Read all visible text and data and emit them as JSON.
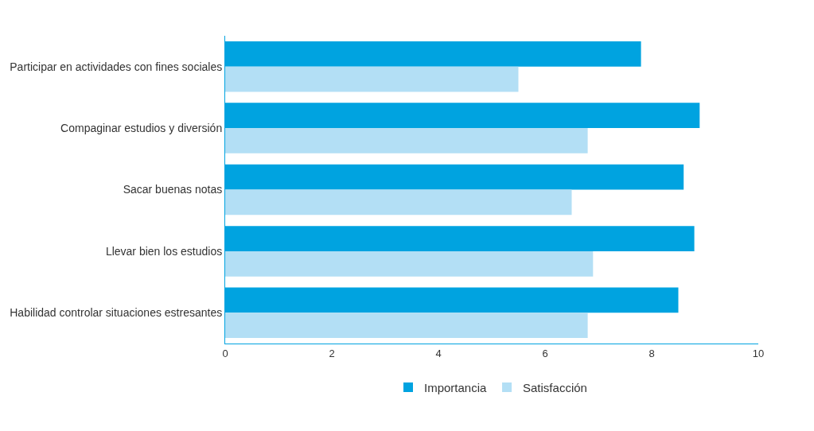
{
  "chart_data": {
    "type": "bar",
    "orientation": "horizontal",
    "categories": [
      "Participar en actividades con fines sociales",
      "Compaginar estudios y diversión",
      "Sacar buenas notas",
      "Llevar bien los estudios",
      "Habilidad controlar situaciones estresantes"
    ],
    "series": [
      {
        "name": "Importancia",
        "color": "#00a3e0",
        "values": [
          7.8,
          8.9,
          8.6,
          8.8,
          8.5
        ]
      },
      {
        "name": "Satisfacción",
        "color": "#b3dff5",
        "values": [
          5.5,
          6.8,
          6.5,
          6.9,
          6.8
        ]
      }
    ],
    "xlim": [
      0,
      10
    ],
    "xticks": [
      0,
      2,
      4,
      6,
      8,
      10
    ],
    "legend": "bottom"
  }
}
